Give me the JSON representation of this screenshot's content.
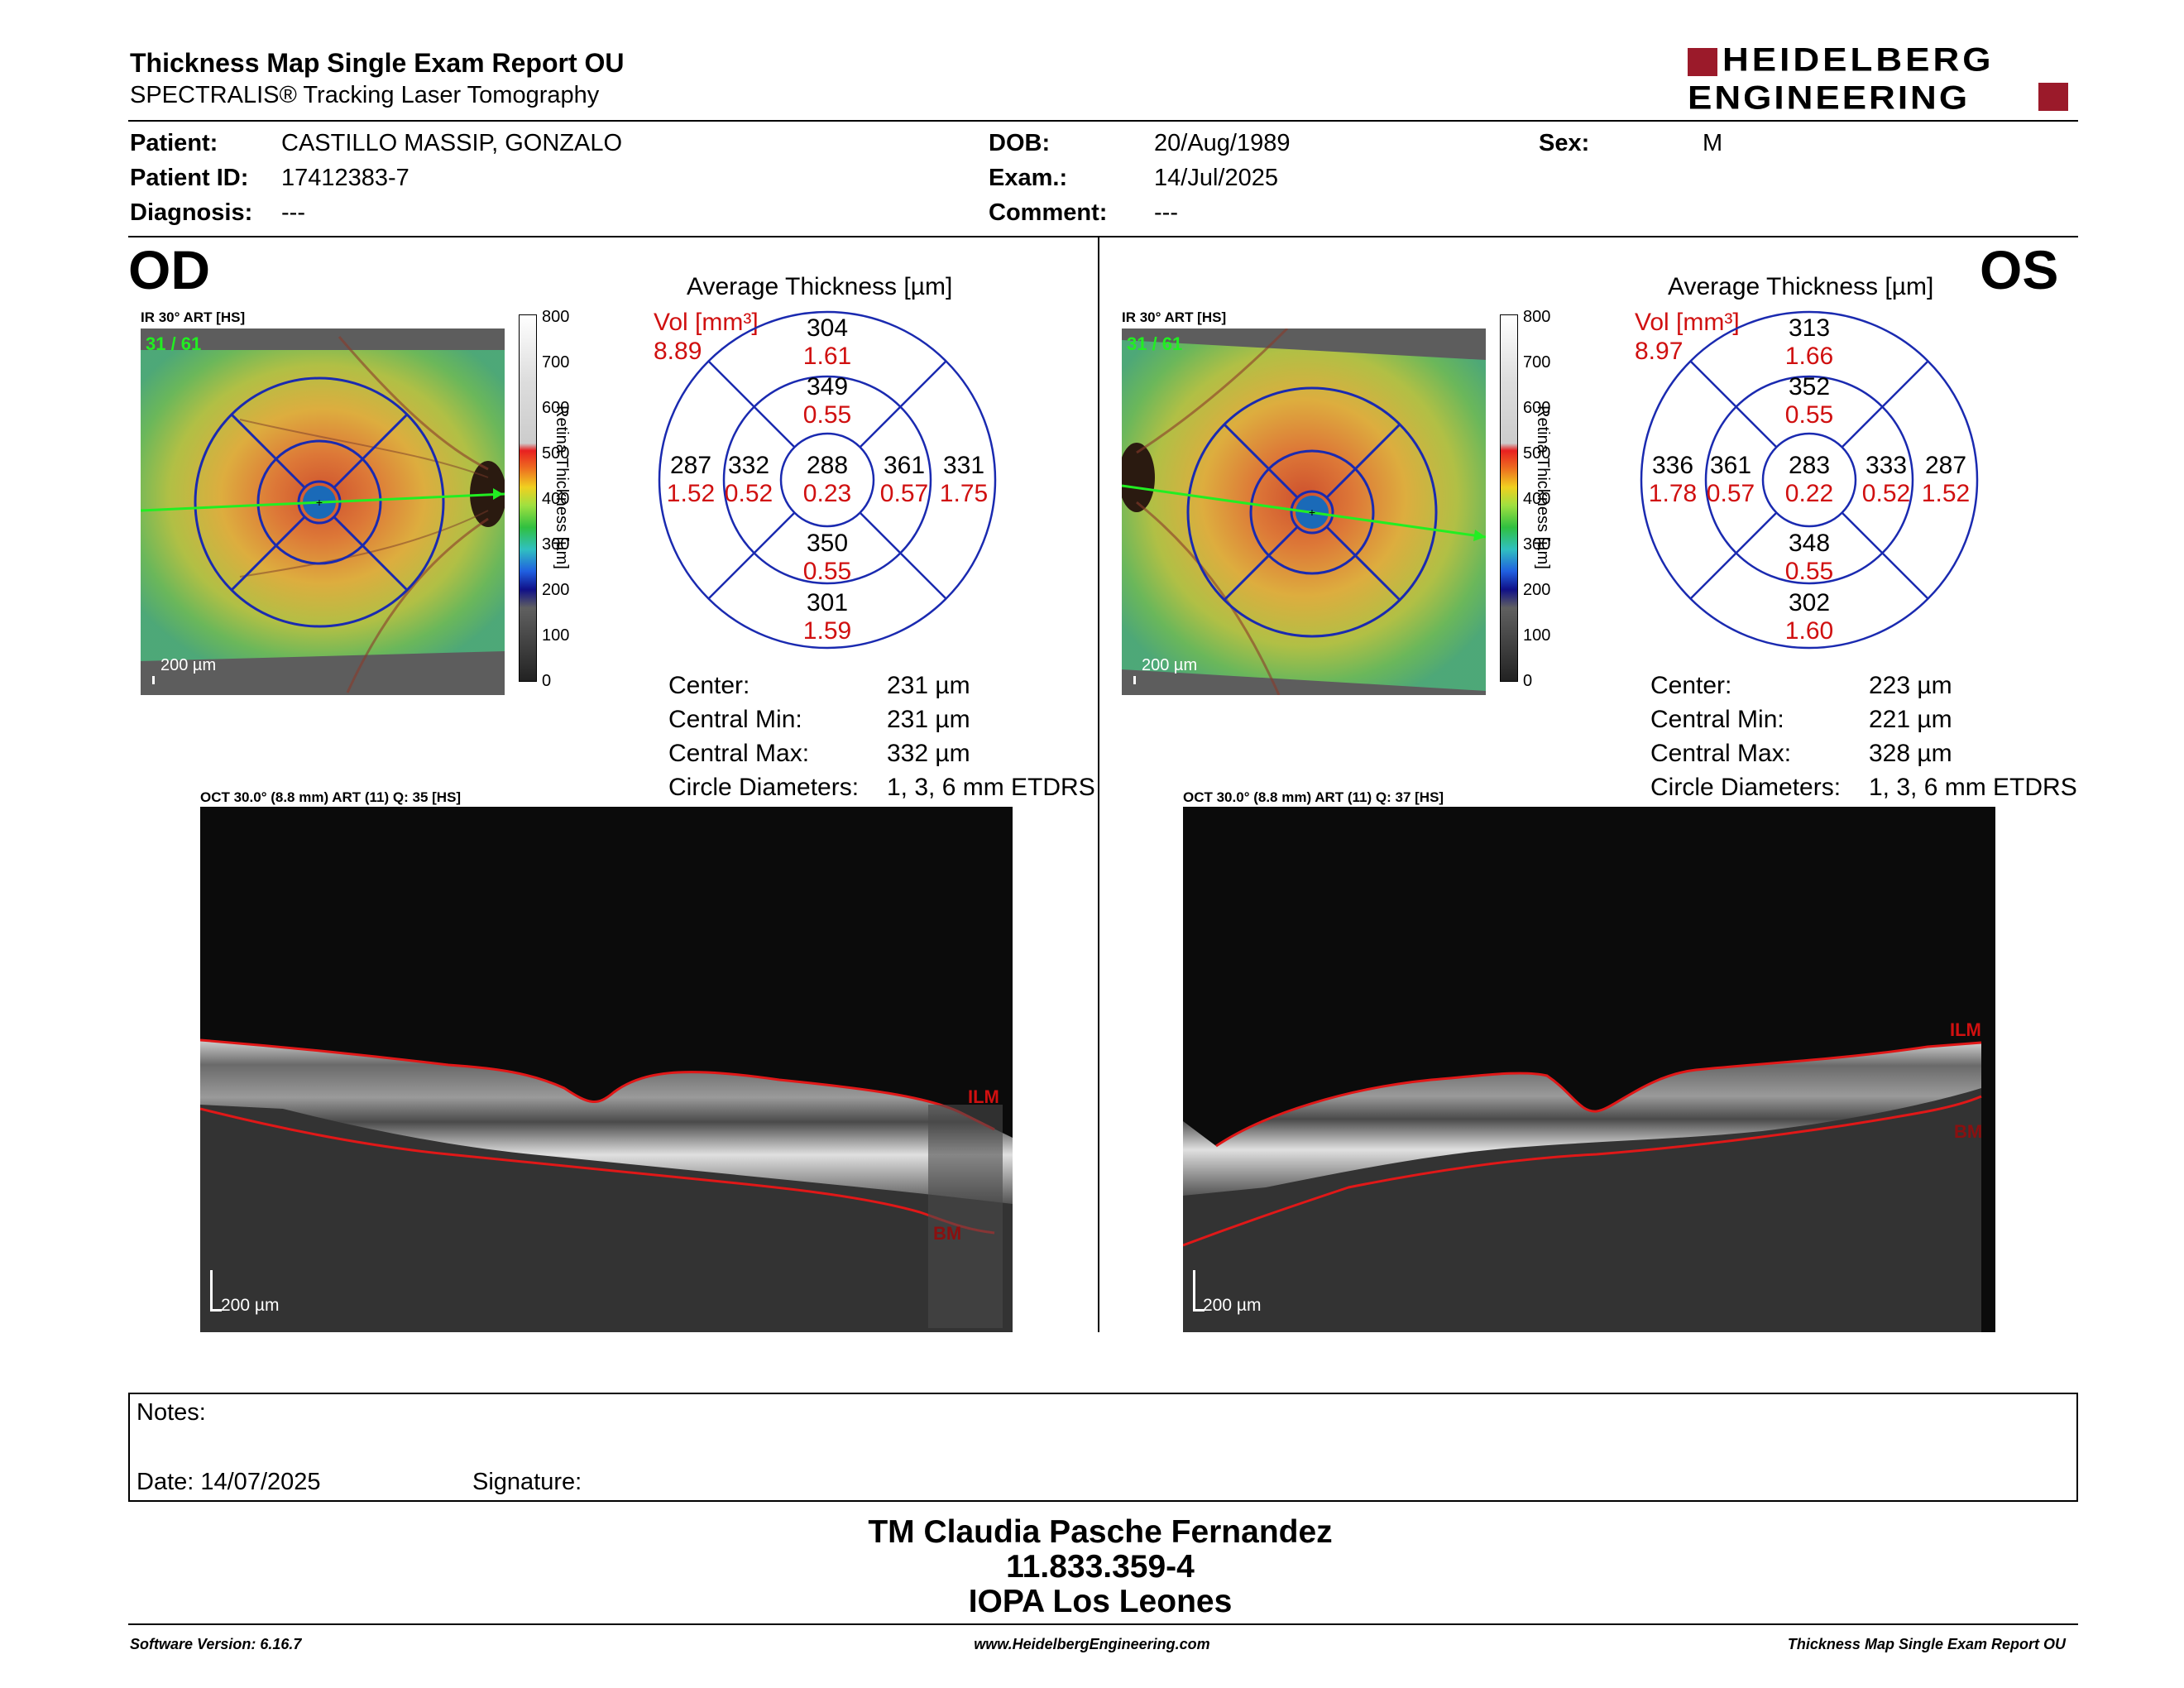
{
  "header": {
    "title": "Thickness Map Single Exam Report OU",
    "subtitle": "SPECTRALIS® Tracking Laser Tomography",
    "logo_line1": "HEIDELBERG",
    "logo_line2": "ENGINEERING",
    "logo_color": "#9b1a2a"
  },
  "patient": {
    "patient_label": "Patient:",
    "patient": "CASTILLO MASSIP, GONZALO",
    "id_label": "Patient ID:",
    "id": "17412383-7",
    "diagnosis_label": "Diagnosis:",
    "diagnosis": "---",
    "dob_label": "DOB:",
    "dob": "20/Aug/1989",
    "exam_label": "Exam.:",
    "exam": "14/Jul/2025",
    "comment_label": "Comment:",
    "comment": "---",
    "sex_label": "Sex:",
    "sex": "M"
  },
  "od": {
    "eye": "OD",
    "ir_label": "IR 30° ART [HS]",
    "frame": "31 / 61",
    "scale": "200 µm",
    "avg_title": "Average Thickness [µm]",
    "vol_label": "Vol [mm³]",
    "vol": "8.89",
    "sectors": {
      "superior_outer": [
        "304",
        "1.61"
      ],
      "superior_inner": [
        "349",
        "0.55"
      ],
      "temporal_outer": [
        "287",
        "1.52"
      ],
      "temporal_inner": [
        "332",
        "0.52"
      ],
      "center": [
        "288",
        "0.23"
      ],
      "nasal_inner": [
        "361",
        "0.57"
      ],
      "nasal_outer": [
        "331",
        "1.75"
      ],
      "inferior_inner": [
        "350",
        "0.55"
      ],
      "inferior_outer": [
        "301",
        "1.59"
      ]
    },
    "stats": [
      {
        "label": "Center:",
        "value": "231 µm"
      },
      {
        "label": "Central Min:",
        "value": "231 µm"
      },
      {
        "label": "Central Max:",
        "value": "332 µm"
      },
      {
        "label": "Circle Diameters:",
        "value": "1, 3, 6 mm ETDRS"
      }
    ],
    "oct_label": "OCT 30.0° (8.8 mm) ART (11) Q: 35 [HS]",
    "ilm": "ILM",
    "bm": "BM",
    "oct_scale": "200 µm"
  },
  "os": {
    "eye": "OS",
    "ir_label": "IR 30° ART [HS]",
    "frame": "31 / 61",
    "scale": "200 µm",
    "avg_title": "Average Thickness [µm]",
    "vol_label": "Vol [mm³]",
    "vol": "8.97",
    "sectors": {
      "superior_outer": [
        "313",
        "1.66"
      ],
      "superior_inner": [
        "352",
        "0.55"
      ],
      "temporal_outer": [
        "336",
        "1.78"
      ],
      "temporal_inner": [
        "361",
        "0.57"
      ],
      "center": [
        "283",
        "0.22"
      ],
      "nasal_inner": [
        "333",
        "0.52"
      ],
      "nasal_outer": [
        "287",
        "1.52"
      ],
      "inferior_inner": [
        "348",
        "0.55"
      ],
      "inferior_outer": [
        "302",
        "1.60"
      ]
    },
    "stats": [
      {
        "label": "Center:",
        "value": "223 µm"
      },
      {
        "label": "Central Min:",
        "value": "221 µm"
      },
      {
        "label": "Central Max:",
        "value": "328 µm"
      },
      {
        "label": "Circle Diameters:",
        "value": "1, 3, 6 mm ETDRS"
      }
    ],
    "oct_label": "OCT 30.0° (8.8 mm) ART (11) Q: 37 [HS]",
    "ilm": "ILM",
    "bm": "BM",
    "oct_scale": "200 µm"
  },
  "colorbar": {
    "ticks": [
      "800",
      "700",
      "600",
      "500",
      "400",
      "300",
      "200",
      "100",
      "0"
    ],
    "label": "Retina Thickness [µm]"
  },
  "notes": {
    "notes_label": "Notes:",
    "date_label": "Date: 14/07/2025",
    "signature_label": "Signature:"
  },
  "signer": {
    "name": "TM Claudia Pasche Fernandez",
    "id": "11.833.359-4",
    "place": "IOPA Los Leones"
  },
  "footer": {
    "software": "Software Version: 6.16.7",
    "url": "www.HeidelbergEngineering.com",
    "report": "Thickness Map Single Exam Report OU"
  }
}
